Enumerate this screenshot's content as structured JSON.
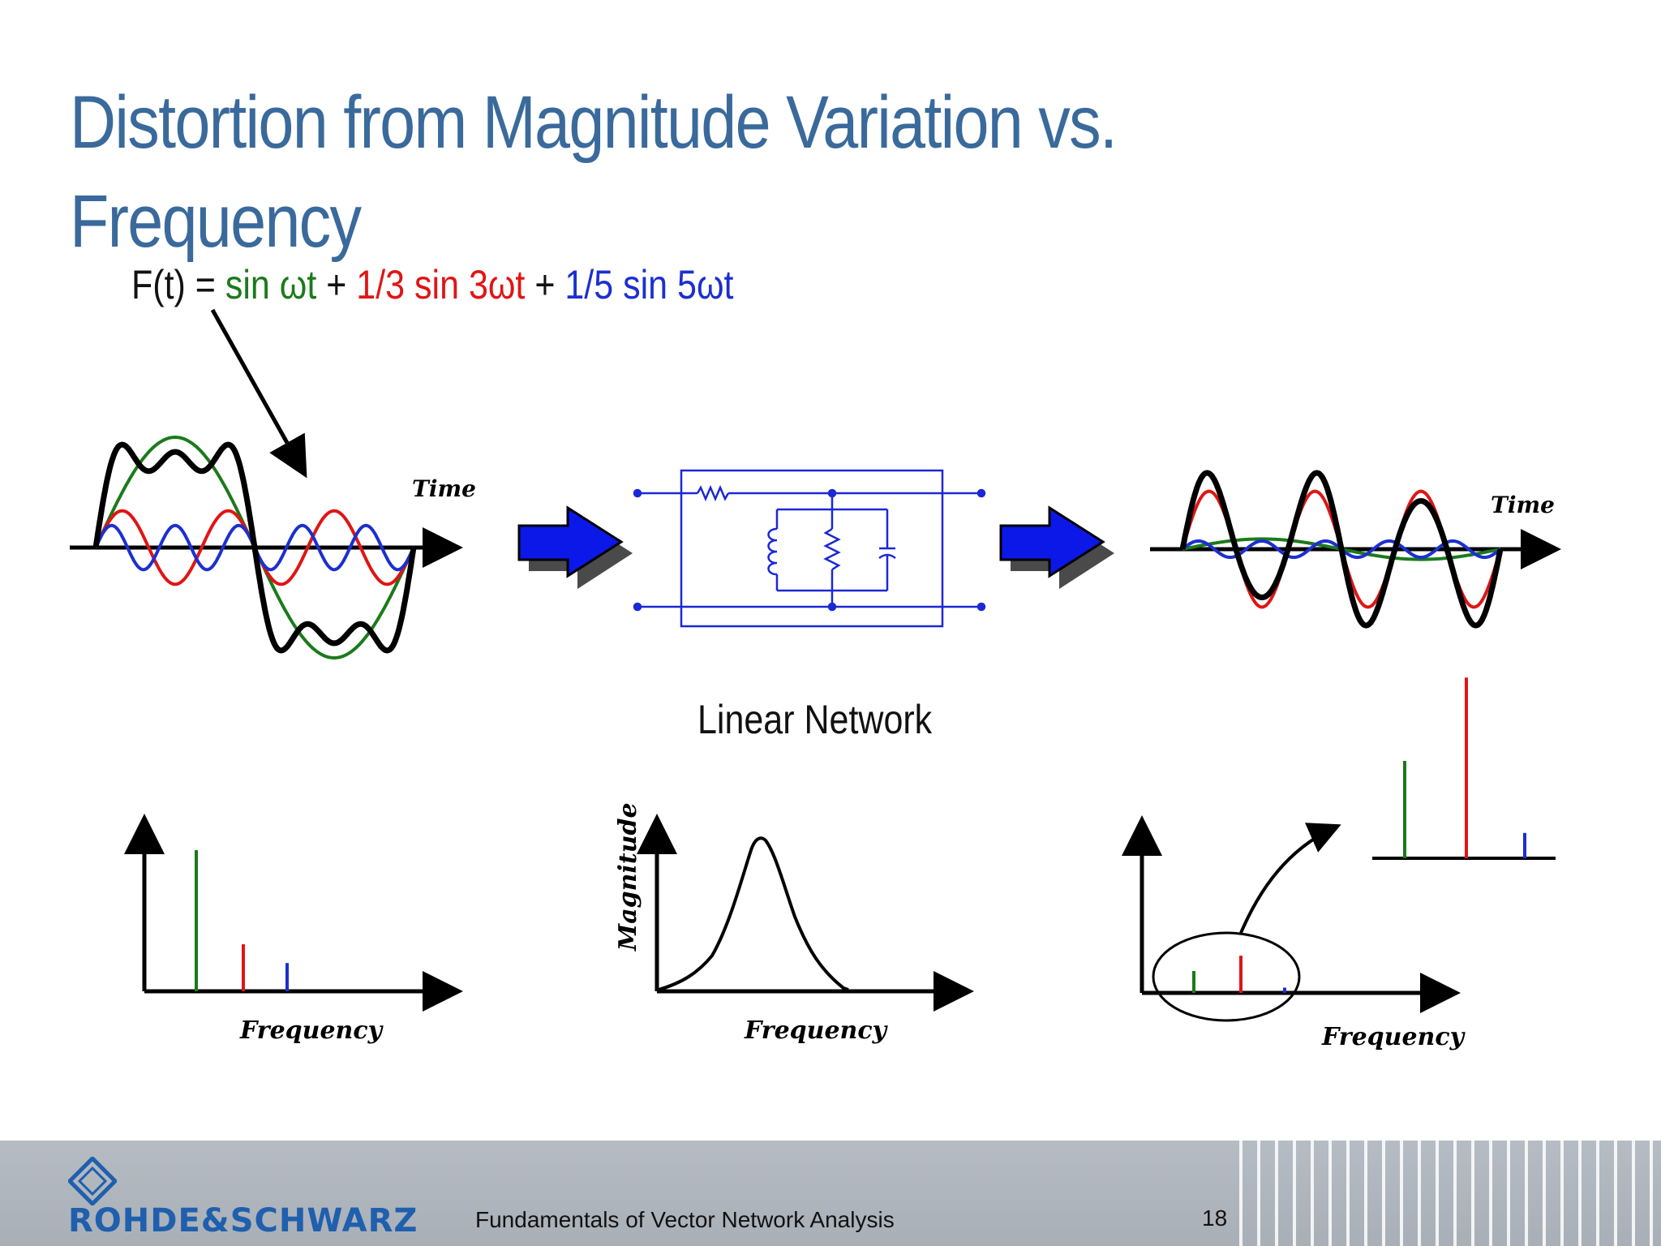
{
  "slide": {
    "title_line1": "Distortion from Magnitude Variation vs.",
    "title_line2": "Frequency"
  },
  "formula": {
    "prefix": "F(t) = ",
    "term1": "sin ωt",
    "plus1": " + ",
    "term2": "1/3 sin 3ωt",
    "plus2": " + ",
    "term3": "1/5 sin 5ωt"
  },
  "labels": {
    "time_left": "Time",
    "time_right": "Time",
    "linear_network": "Linear Network",
    "freq_left": "Frequency",
    "freq_mid": "Frequency",
    "freq_right": "Frequency",
    "magnitude": "Magnitude"
  },
  "colors": {
    "fundamental": "#1b7a1b",
    "third_harmonic": "#e01515",
    "fifth_harmonic": "#1c2fd0",
    "composite": "#000000",
    "title": "#3a6a9c"
  },
  "spectra": {
    "input": {
      "fundamental": 1.0,
      "third": 0.333,
      "fifth": 0.2
    },
    "output": {
      "fundamental": 0.5,
      "third": 0.85,
      "fifth": 0.12
    }
  },
  "footer": {
    "brand": "ROHDE&SCHWARZ",
    "title": "Fundamentals of Vector Network Analysis",
    "page": "18"
  }
}
